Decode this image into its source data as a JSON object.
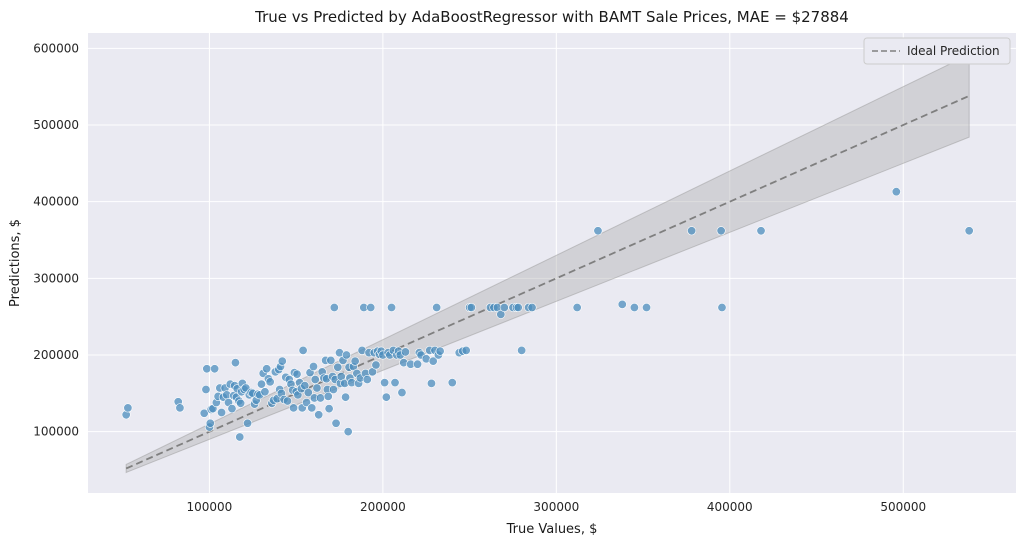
{
  "chart_data": {
    "type": "scatter",
    "title": "True vs Predicted by AdaBoostRegressor with BAMT Sale Prices, MAE = $27884",
    "xlabel": "True Values, $",
    "ylabel": "Predictions, $",
    "xlim": [
      30000,
      565000
    ],
    "ylim": [
      20000,
      620000
    ],
    "xticks": [
      100000,
      200000,
      300000,
      400000,
      500000
    ],
    "yticks": [
      100000,
      200000,
      300000,
      400000,
      500000,
      600000
    ],
    "grid": true,
    "legend_position": "top-right",
    "ideal_line": {
      "name": "Ideal Prediction",
      "x": [
        52000,
        538000
      ],
      "y": [
        52000,
        538000
      ]
    },
    "confidence_band": {
      "lower_factor": 0.9,
      "upper_factor": 1.1
    },
    "colors": {
      "points": "#4c8dbd",
      "ideal": "#7f7f7f",
      "band": "#a8a8a8",
      "background": "#eaeaf2",
      "grid": "#ffffff"
    },
    "points": [
      [
        52000,
        122000
      ],
      [
        53000,
        131000
      ],
      [
        82000,
        139000
      ],
      [
        83000,
        131000
      ],
      [
        97000,
        124000
      ],
      [
        98000,
        155000
      ],
      [
        98500,
        182000
      ],
      [
        100000,
        106000
      ],
      [
        100500,
        111000
      ],
      [
        101000,
        129000
      ],
      [
        102000,
        130000
      ],
      [
        103000,
        182000
      ],
      [
        104000,
        138000
      ],
      [
        105000,
        146000
      ],
      [
        106000,
        157000
      ],
      [
        107000,
        125000
      ],
      [
        108000,
        145000
      ],
      [
        109000,
        157000
      ],
      [
        110000,
        148000
      ],
      [
        111000,
        138000
      ],
      [
        112000,
        162000
      ],
      [
        113000,
        130000
      ],
      [
        114000,
        147000
      ],
      [
        114500,
        160000
      ],
      [
        115000,
        190000
      ],
      [
        115500,
        145000
      ],
      [
        116000,
        156000
      ],
      [
        117000,
        140000
      ],
      [
        117500,
        93000
      ],
      [
        118000,
        137000
      ],
      [
        118500,
        152000
      ],
      [
        119000,
        163000
      ],
      [
        120000,
        155000
      ],
      [
        121000,
        157000
      ],
      [
        122000,
        111000
      ],
      [
        123000,
        148000
      ],
      [
        124000,
        151000
      ],
      [
        125000,
        150000
      ],
      [
        126000,
        136000
      ],
      [
        127000,
        141000
      ],
      [
        128000,
        149000
      ],
      [
        129000,
        148000
      ],
      [
        130000,
        162000
      ],
      [
        131000,
        176000
      ],
      [
        132000,
        152000
      ],
      [
        133000,
        182000
      ],
      [
        134000,
        169000
      ],
      [
        135000,
        165000
      ],
      [
        136000,
        137000
      ],
      [
        137000,
        141000
      ],
      [
        138000,
        178000
      ],
      [
        139000,
        143000
      ],
      [
        140000,
        181000
      ],
      [
        140500,
        155000
      ],
      [
        141000,
        185000
      ],
      [
        141500,
        150000
      ],
      [
        142000,
        192000
      ],
      [
        143000,
        142000
      ],
      [
        144000,
        171000
      ],
      [
        145000,
        140000
      ],
      [
        146000,
        168000
      ],
      [
        147000,
        162000
      ],
      [
        148000,
        154000
      ],
      [
        148500,
        131000
      ],
      [
        149000,
        177000
      ],
      [
        150000,
        152000
      ],
      [
        150500,
        175000
      ],
      [
        151000,
        148000
      ],
      [
        152000,
        164000
      ],
      [
        153000,
        156000
      ],
      [
        153500,
        131000
      ],
      [
        154000,
        206000
      ],
      [
        155000,
        160000
      ],
      [
        156000,
        138000
      ],
      [
        157000,
        151000
      ],
      [
        158000,
        177000
      ],
      [
        159000,
        131000
      ],
      [
        160000,
        185000
      ],
      [
        160500,
        144000
      ],
      [
        161000,
        168000
      ],
      [
        162000,
        157000
      ],
      [
        163000,
        122000
      ],
      [
        164000,
        144000
      ],
      [
        165000,
        178000
      ],
      [
        166000,
        170000
      ],
      [
        167000,
        193000
      ],
      [
        167500,
        169000
      ],
      [
        168000,
        155000
      ],
      [
        168500,
        146000
      ],
      [
        169000,
        130000
      ],
      [
        170000,
        193000
      ],
      [
        171000,
        172000
      ],
      [
        171500,
        155000
      ],
      [
        172000,
        262000
      ],
      [
        172500,
        168000
      ],
      [
        173000,
        111000
      ],
      [
        174000,
        184000
      ],
      [
        175000,
        203000
      ],
      [
        175500,
        163000
      ],
      [
        176000,
        172000
      ],
      [
        177000,
        193000
      ],
      [
        178000,
        163000
      ],
      [
        178500,
        145000
      ],
      [
        179000,
        200000
      ],
      [
        180000,
        100000
      ],
      [
        180500,
        184000
      ],
      [
        181000,
        170000
      ],
      [
        182000,
        164000
      ],
      [
        183000,
        185000
      ],
      [
        184000,
        192000
      ],
      [
        185000,
        176000
      ],
      [
        186000,
        163000
      ],
      [
        187000,
        170000
      ],
      [
        188000,
        206000
      ],
      [
        189000,
        262000
      ],
      [
        190000,
        176000
      ],
      [
        191000,
        168000
      ],
      [
        192000,
        203000
      ],
      [
        193000,
        262000
      ],
      [
        194000,
        178000
      ],
      [
        195000,
        203000
      ],
      [
        196000,
        187000
      ],
      [
        197000,
        205000
      ],
      [
        198000,
        201000
      ],
      [
        199000,
        205000
      ],
      [
        200000,
        200000
      ],
      [
        201000,
        164000
      ],
      [
        202000,
        145000
      ],
      [
        203000,
        203000
      ],
      [
        204000,
        200000
      ],
      [
        205000,
        262000
      ],
      [
        206000,
        206000
      ],
      [
        207000,
        164000
      ],
      [
        208000,
        200000
      ],
      [
        209000,
        205000
      ],
      [
        210000,
        200000
      ],
      [
        211000,
        151000
      ],
      [
        212000,
        190000
      ],
      [
        213000,
        204000
      ],
      [
        216000,
        188000
      ],
      [
        220000,
        188000
      ],
      [
        221000,
        203000
      ],
      [
        222000,
        200000
      ],
      [
        225000,
        195000
      ],
      [
        227000,
        206000
      ],
      [
        228000,
        163000
      ],
      [
        229000,
        192000
      ],
      [
        230000,
        206000
      ],
      [
        231000,
        262000
      ],
      [
        232000,
        200000
      ],
      [
        233000,
        205000
      ],
      [
        240000,
        164000
      ],
      [
        244000,
        203000
      ],
      [
        246000,
        205000
      ],
      [
        248000,
        206000
      ],
      [
        250000,
        262000
      ],
      [
        251000,
        262000
      ],
      [
        262000,
        262000
      ],
      [
        264000,
        262000
      ],
      [
        266000,
        262000
      ],
      [
        268000,
        253000
      ],
      [
        270000,
        262000
      ],
      [
        275000,
        262000
      ],
      [
        277000,
        262000
      ],
      [
        278000,
        262000
      ],
      [
        280000,
        206000
      ],
      [
        284000,
        262000
      ],
      [
        286000,
        262000
      ],
      [
        312000,
        262000
      ],
      [
        324000,
        362000
      ],
      [
        338000,
        266000
      ],
      [
        345000,
        262000
      ],
      [
        352000,
        262000
      ],
      [
        378000,
        362000
      ],
      [
        395000,
        362000
      ],
      [
        395500,
        262000
      ],
      [
        418000,
        362000
      ],
      [
        496000,
        413000
      ],
      [
        538000,
        362000
      ]
    ]
  },
  "legend": {
    "label": "Ideal Prediction"
  }
}
